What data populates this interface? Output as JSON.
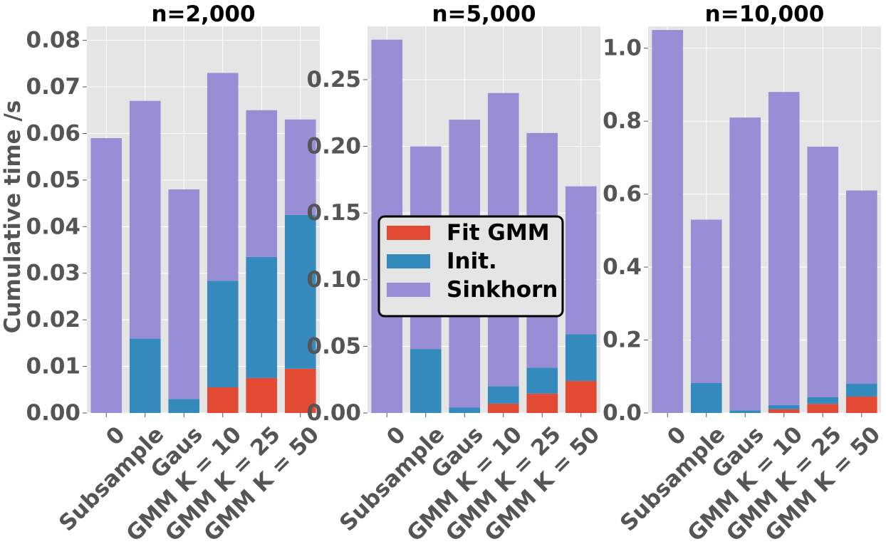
{
  "colors": {
    "fit_gmm": "#E24A33",
    "init": "#348ABD",
    "sinkhorn": "#988ED5",
    "panel_bg": "#E5E5E5",
    "grid": "#FFFFFF",
    "text": "#555555"
  },
  "legend": {
    "entries": [
      "Fit GMM",
      "Init.",
      "Sinkhorn"
    ],
    "placement": "center, over middle panel"
  },
  "chart_data": [
    {
      "type": "bar",
      "stacked": true,
      "title": "n=2,000",
      "ylabel": "Cumulative time /s",
      "xlabel": "",
      "categories": [
        "0",
        "Subsample",
        "Gaus",
        "GMM K = 10",
        "GMM K = 25",
        "GMM K = 50"
      ],
      "ylim": [
        0,
        0.083
      ],
      "yticks": [
        0.0,
        0.01,
        0.02,
        0.03,
        0.04,
        0.05,
        0.06,
        0.07,
        0.08
      ],
      "ytick_labels": [
        "0.00",
        "0.01",
        "0.02",
        "0.03",
        "0.04",
        "0.05",
        "0.06",
        "0.07",
        "0.08"
      ],
      "series": [
        {
          "name": "Fit GMM",
          "values": [
            0,
            0,
            0,
            0.0055,
            0.0075,
            0.0095
          ]
        },
        {
          "name": "Init.",
          "values": [
            0,
            0.016,
            0.003,
            0.0229,
            0.026,
            0.033
          ]
        },
        {
          "name": "Sinkhorn",
          "values": [
            0.059,
            0.051,
            0.045,
            0.0446,
            0.0315,
            0.0205
          ]
        }
      ]
    },
    {
      "type": "bar",
      "stacked": true,
      "title": "n=5,000",
      "ylabel": "",
      "xlabel": "",
      "categories": [
        "0",
        "Subsample",
        "Gaus",
        "GMM K = 10",
        "GMM K = 25",
        "GMM K = 50"
      ],
      "ylim": [
        0,
        0.29
      ],
      "yticks": [
        0.0,
        0.05,
        0.1,
        0.15,
        0.2,
        0.25
      ],
      "ytick_labels": [
        "0.00",
        "0.05",
        "0.10",
        "0.15",
        "0.20",
        "0.25"
      ],
      "series": [
        {
          "name": "Fit GMM",
          "values": [
            0,
            0,
            0,
            0.007,
            0.0145,
            0.024
          ]
        },
        {
          "name": "Init.",
          "values": [
            0,
            0.048,
            0.004,
            0.013,
            0.0195,
            0.035
          ]
        },
        {
          "name": "Sinkhorn",
          "values": [
            0.28,
            0.152,
            0.216,
            0.22,
            0.176,
            0.111
          ]
        }
      ]
    },
    {
      "type": "bar",
      "stacked": true,
      "title": "n=10,000",
      "ylabel": "",
      "xlabel": "",
      "categories": [
        "0",
        "Subsample",
        "Gaus",
        "GMM K = 10",
        "GMM K = 25",
        "GMM K = 50"
      ],
      "ylim": [
        0,
        1.06
      ],
      "yticks": [
        0.0,
        0.2,
        0.4,
        0.6,
        0.8,
        1.0
      ],
      "ytick_labels": [
        "0.0",
        "0.2",
        "0.4",
        "0.6",
        "0.8",
        "1.0"
      ],
      "series": [
        {
          "name": "Fit GMM",
          "values": [
            0,
            0,
            0,
            0.01,
            0.025,
            0.045
          ]
        },
        {
          "name": "Init.",
          "values": [
            0,
            0.082,
            0.007,
            0.012,
            0.018,
            0.035
          ]
        },
        {
          "name": "Sinkhorn",
          "values": [
            1.05,
            0.448,
            0.803,
            0.858,
            0.687,
            0.53
          ]
        }
      ]
    }
  ]
}
